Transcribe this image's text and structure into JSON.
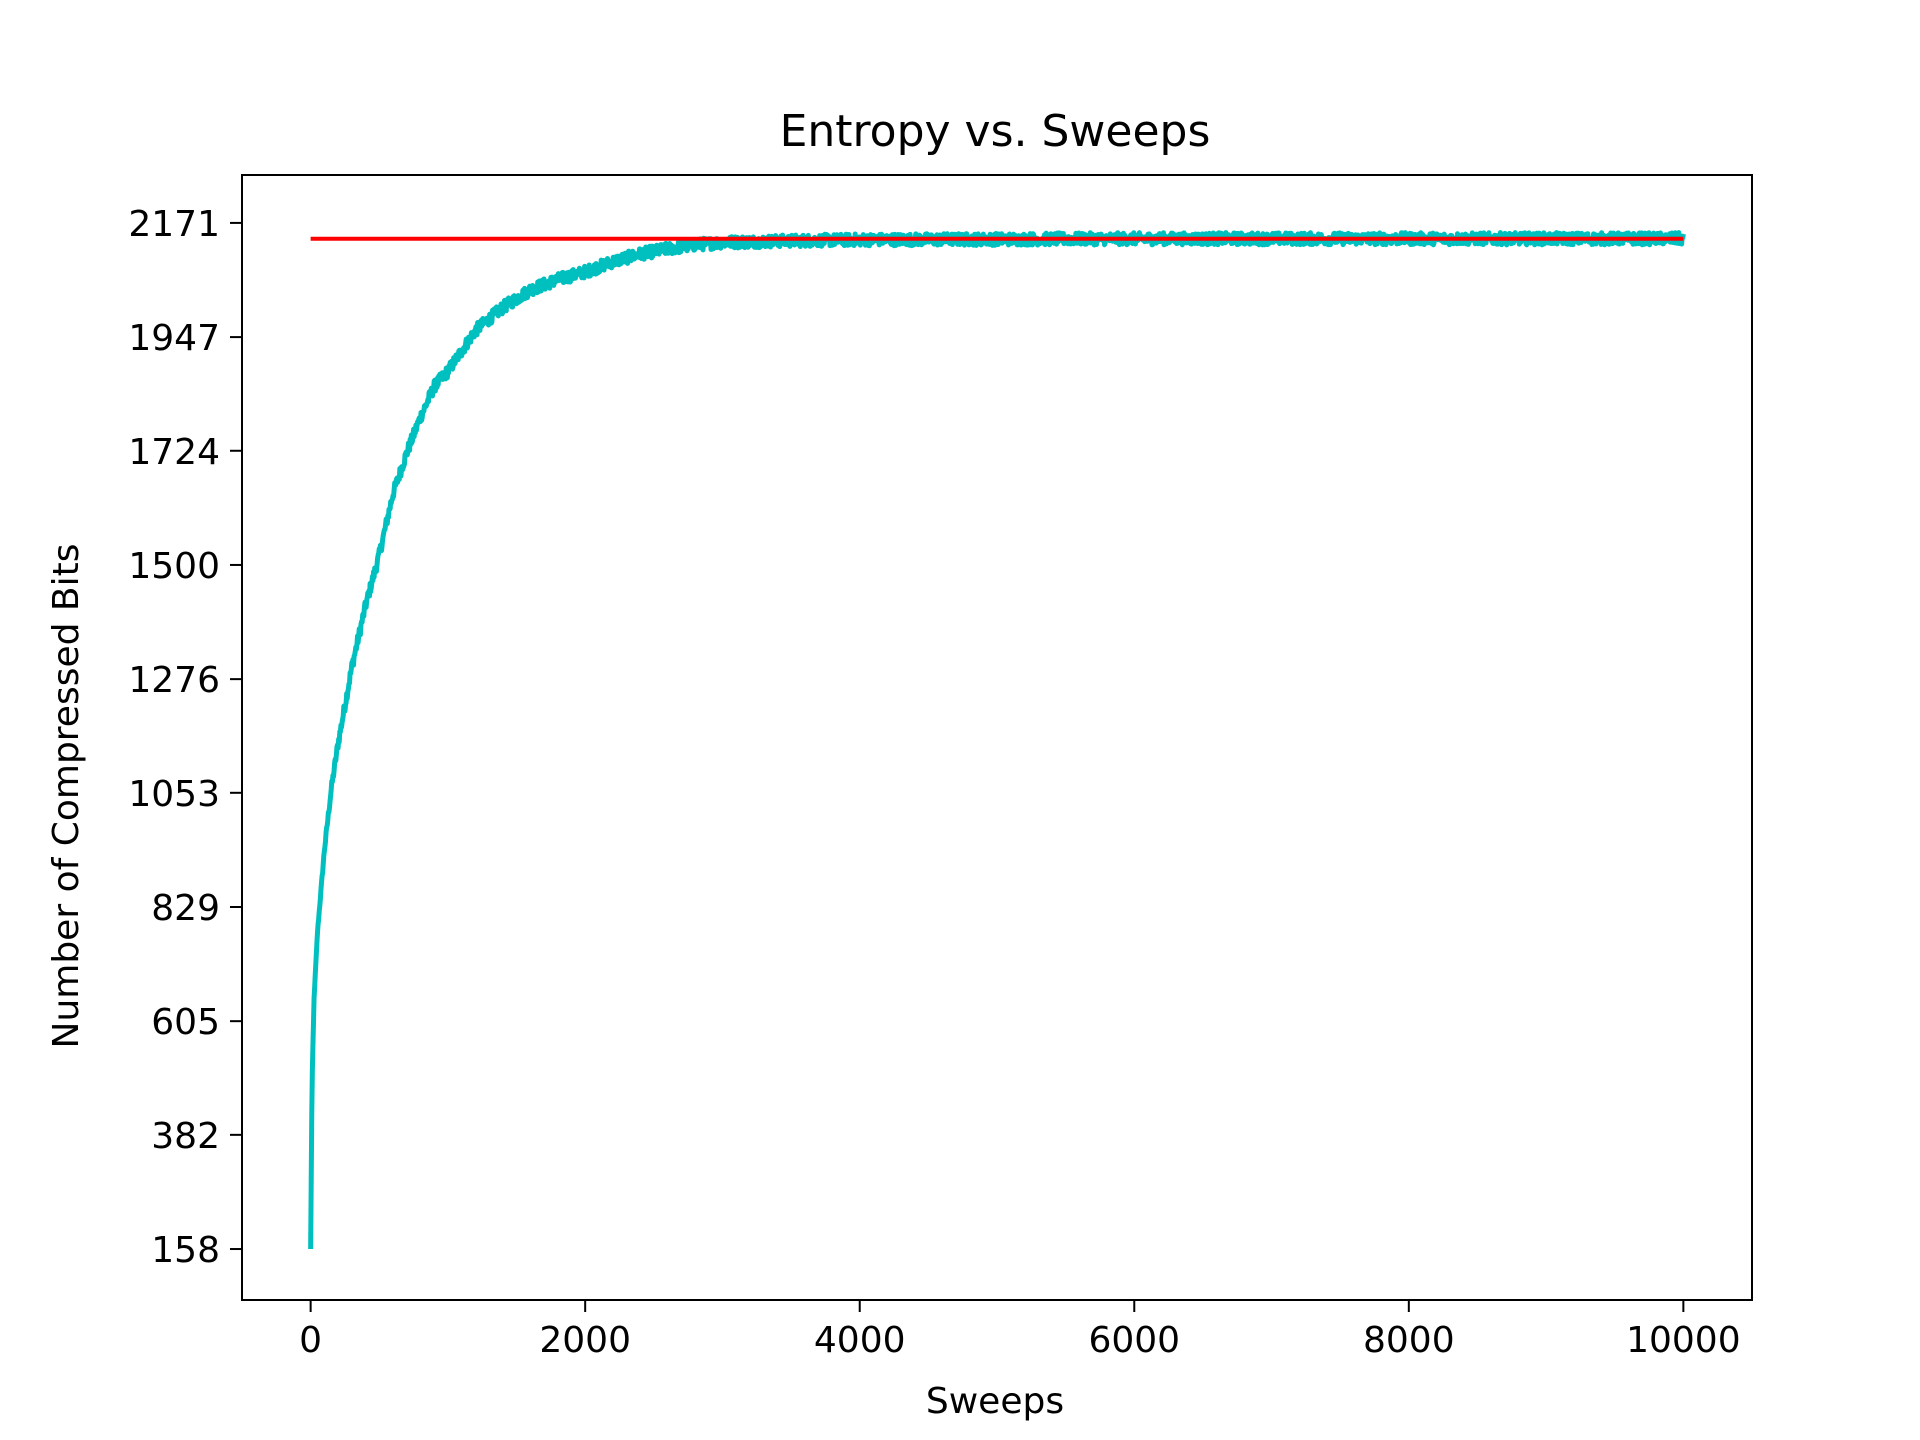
{
  "chart_data": {
    "type": "line",
    "title": "Entropy vs. Sweeps",
    "xlabel": "Sweeps",
    "ylabel": "Number of Compressed Bits",
    "xlim": [
      -500,
      10500
    ],
    "ylim": [
      58,
      2265
    ],
    "xticks": [
      0,
      2000,
      4000,
      6000,
      8000,
      10000
    ],
    "xtick_labels": [
      "0",
      "2000",
      "4000",
      "6000",
      "8000",
      "10000"
    ],
    "yticks": [
      158,
      382,
      605,
      829,
      1053,
      1276,
      1500,
      1724,
      1947,
      2171
    ],
    "ytick_labels": [
      "158",
      "382",
      "605",
      "829",
      "1053",
      "1276",
      "1500",
      "1724",
      "1947",
      "2171"
    ],
    "grid": false,
    "legend": "none",
    "series": [
      {
        "color": "#00bfbf",
        "x": [
          0,
          10,
          25,
          50,
          100,
          150,
          200,
          300,
          400,
          500,
          600,
          700,
          800,
          900,
          1000,
          1200,
          1400,
          1600,
          1800,
          2000,
          2200,
          2400,
          2600,
          2800,
          3000,
          3500,
          4000,
          5000,
          6000,
          7000,
          8000,
          9000,
          10000
        ],
        "values": [
          158,
          480,
          650,
          780,
          940,
          1060,
          1150,
          1300,
          1420,
          1520,
          1640,
          1720,
          1790,
          1850,
          1880,
          1960,
          2005,
          2040,
          2060,
          2075,
          2095,
          2110,
          2120,
          2128,
          2133,
          2136,
          2138,
          2139,
          2140,
          2140,
          2140,
          2140,
          2140
        ],
        "noise_amplitude": 12
      },
      {
        "color": "#ff0000",
        "x": [
          0,
          10000
        ],
        "values": [
          2140,
          2140
        ]
      }
    ]
  }
}
